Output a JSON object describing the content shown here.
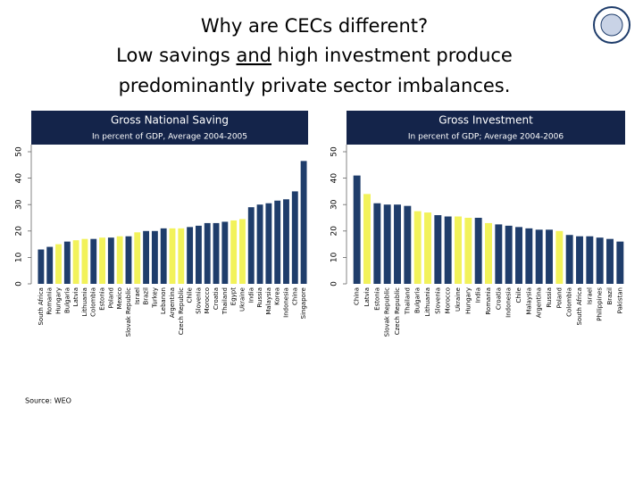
{
  "slide": {
    "title_line1": "Why are CECs different?",
    "title_line2_start": "Low savings ",
    "title_line2_underlined": "and",
    "title_line2_end": " high investment produce",
    "title_line3": "predominantly private sector imbalances.",
    "source": "Source: WEO"
  },
  "chart_data": [
    {
      "type": "bar",
      "title": "Gross National Saving",
      "subtitle": "In percent of GDP, Average 2004-2005",
      "categories": [
        "South Africa",
        "Romania",
        "Hungary",
        "Bulgaria",
        "Latvia",
        "Lithuania",
        "Colombia",
        "Estonia",
        "Poland",
        "Mexico",
        "Slovak Republic",
        "Israel",
        "Brazil",
        "Turkey",
        "Lebanon",
        "Argentina",
        "Czech Republic",
        "Chile",
        "Slovenia",
        "Morocco",
        "Croatia",
        "Thailand",
        "Egypt",
        "Ukraine",
        "India",
        "Russia",
        "Malaysia",
        "Korea",
        "Indonesia",
        "China",
        "Singapore"
      ],
      "values": [
        13,
        14,
        15,
        16,
        16.5,
        17,
        17,
        17.5,
        17.5,
        18,
        18,
        19.5,
        20,
        20,
        21,
        21,
        21,
        21.5,
        22,
        23,
        23,
        23.5,
        24,
        24.5,
        29,
        30,
        30.5,
        31.5,
        32,
        35,
        46.5
      ],
      "colors": [
        "#1f3d6b",
        "#1f3d6b",
        "#f2f25a",
        "#1f3d6b",
        "#f2f25a",
        "#f2f25a",
        "#1f3d6b",
        "#f2f25a",
        "#1f3d6b",
        "#f2f25a",
        "#1f3d6b",
        "#f2f25a",
        "#1f3d6b",
        "#1f3d6b",
        "#1f3d6b",
        "#f2f25a",
        "#f2f25a",
        "#1f3d6b",
        "#1f3d6b",
        "#1f3d6b",
        "#1f3d6b",
        "#1f3d6b",
        "#f2f25a",
        "#f2f25a",
        "#1f3d6b",
        "#1f3d6b",
        "#1f3d6b",
        "#1f3d6b",
        "#1f3d6b",
        "#1f3d6b",
        "#1f3d6b"
      ],
      "ylim": [
        0,
        50
      ],
      "yticks": [
        0,
        10,
        20,
        30,
        40,
        50
      ]
    },
    {
      "type": "bar",
      "title": "Gross Investment",
      "subtitle": "In percent of GDP; Average 2004-2006",
      "categories": [
        "China",
        "Latvia",
        "Estonia",
        "Slovak Republic",
        "Czech Republic",
        "Thailand",
        "Bulgaria",
        "Lithuania",
        "Slovenia",
        "Morocco",
        "Ukraine",
        "Hungary",
        "India",
        "Romania",
        "Croatia",
        "Indonesia",
        "Chile",
        "Malaysia",
        "Argentina",
        "Russia",
        "Poland",
        "Colombia",
        "South Africa",
        "Israel",
        "Philippines",
        "Brazil",
        "Pakistan"
      ],
      "values": [
        41,
        34,
        30.5,
        30,
        30,
        29.5,
        27.5,
        27,
        26,
        25.5,
        25.5,
        25,
        25,
        23,
        22.5,
        22,
        21.5,
        21,
        20.5,
        20.5,
        20,
        18.5,
        18,
        18,
        17.5,
        17,
        16
      ],
      "colors": [
        "#1f3d6b",
        "#f2f25a",
        "#1f3d6b",
        "#1f3d6b",
        "#1f3d6b",
        "#1f3d6b",
        "#f2f25a",
        "#f2f25a",
        "#1f3d6b",
        "#1f3d6b",
        "#f2f25a",
        "#f2f25a",
        "#1f3d6b",
        "#f2f25a",
        "#1f3d6b",
        "#1f3d6b",
        "#1f3d6b",
        "#1f3d6b",
        "#1f3d6b",
        "#1f3d6b",
        "#f2f25a",
        "#1f3d6b",
        "#1f3d6b",
        "#1f3d6b",
        "#1f3d6b",
        "#1f3d6b",
        "#1f3d6b"
      ],
      "ylim": [
        0,
        50
      ],
      "yticks": [
        0,
        10,
        20,
        30,
        40,
        50
      ]
    }
  ]
}
